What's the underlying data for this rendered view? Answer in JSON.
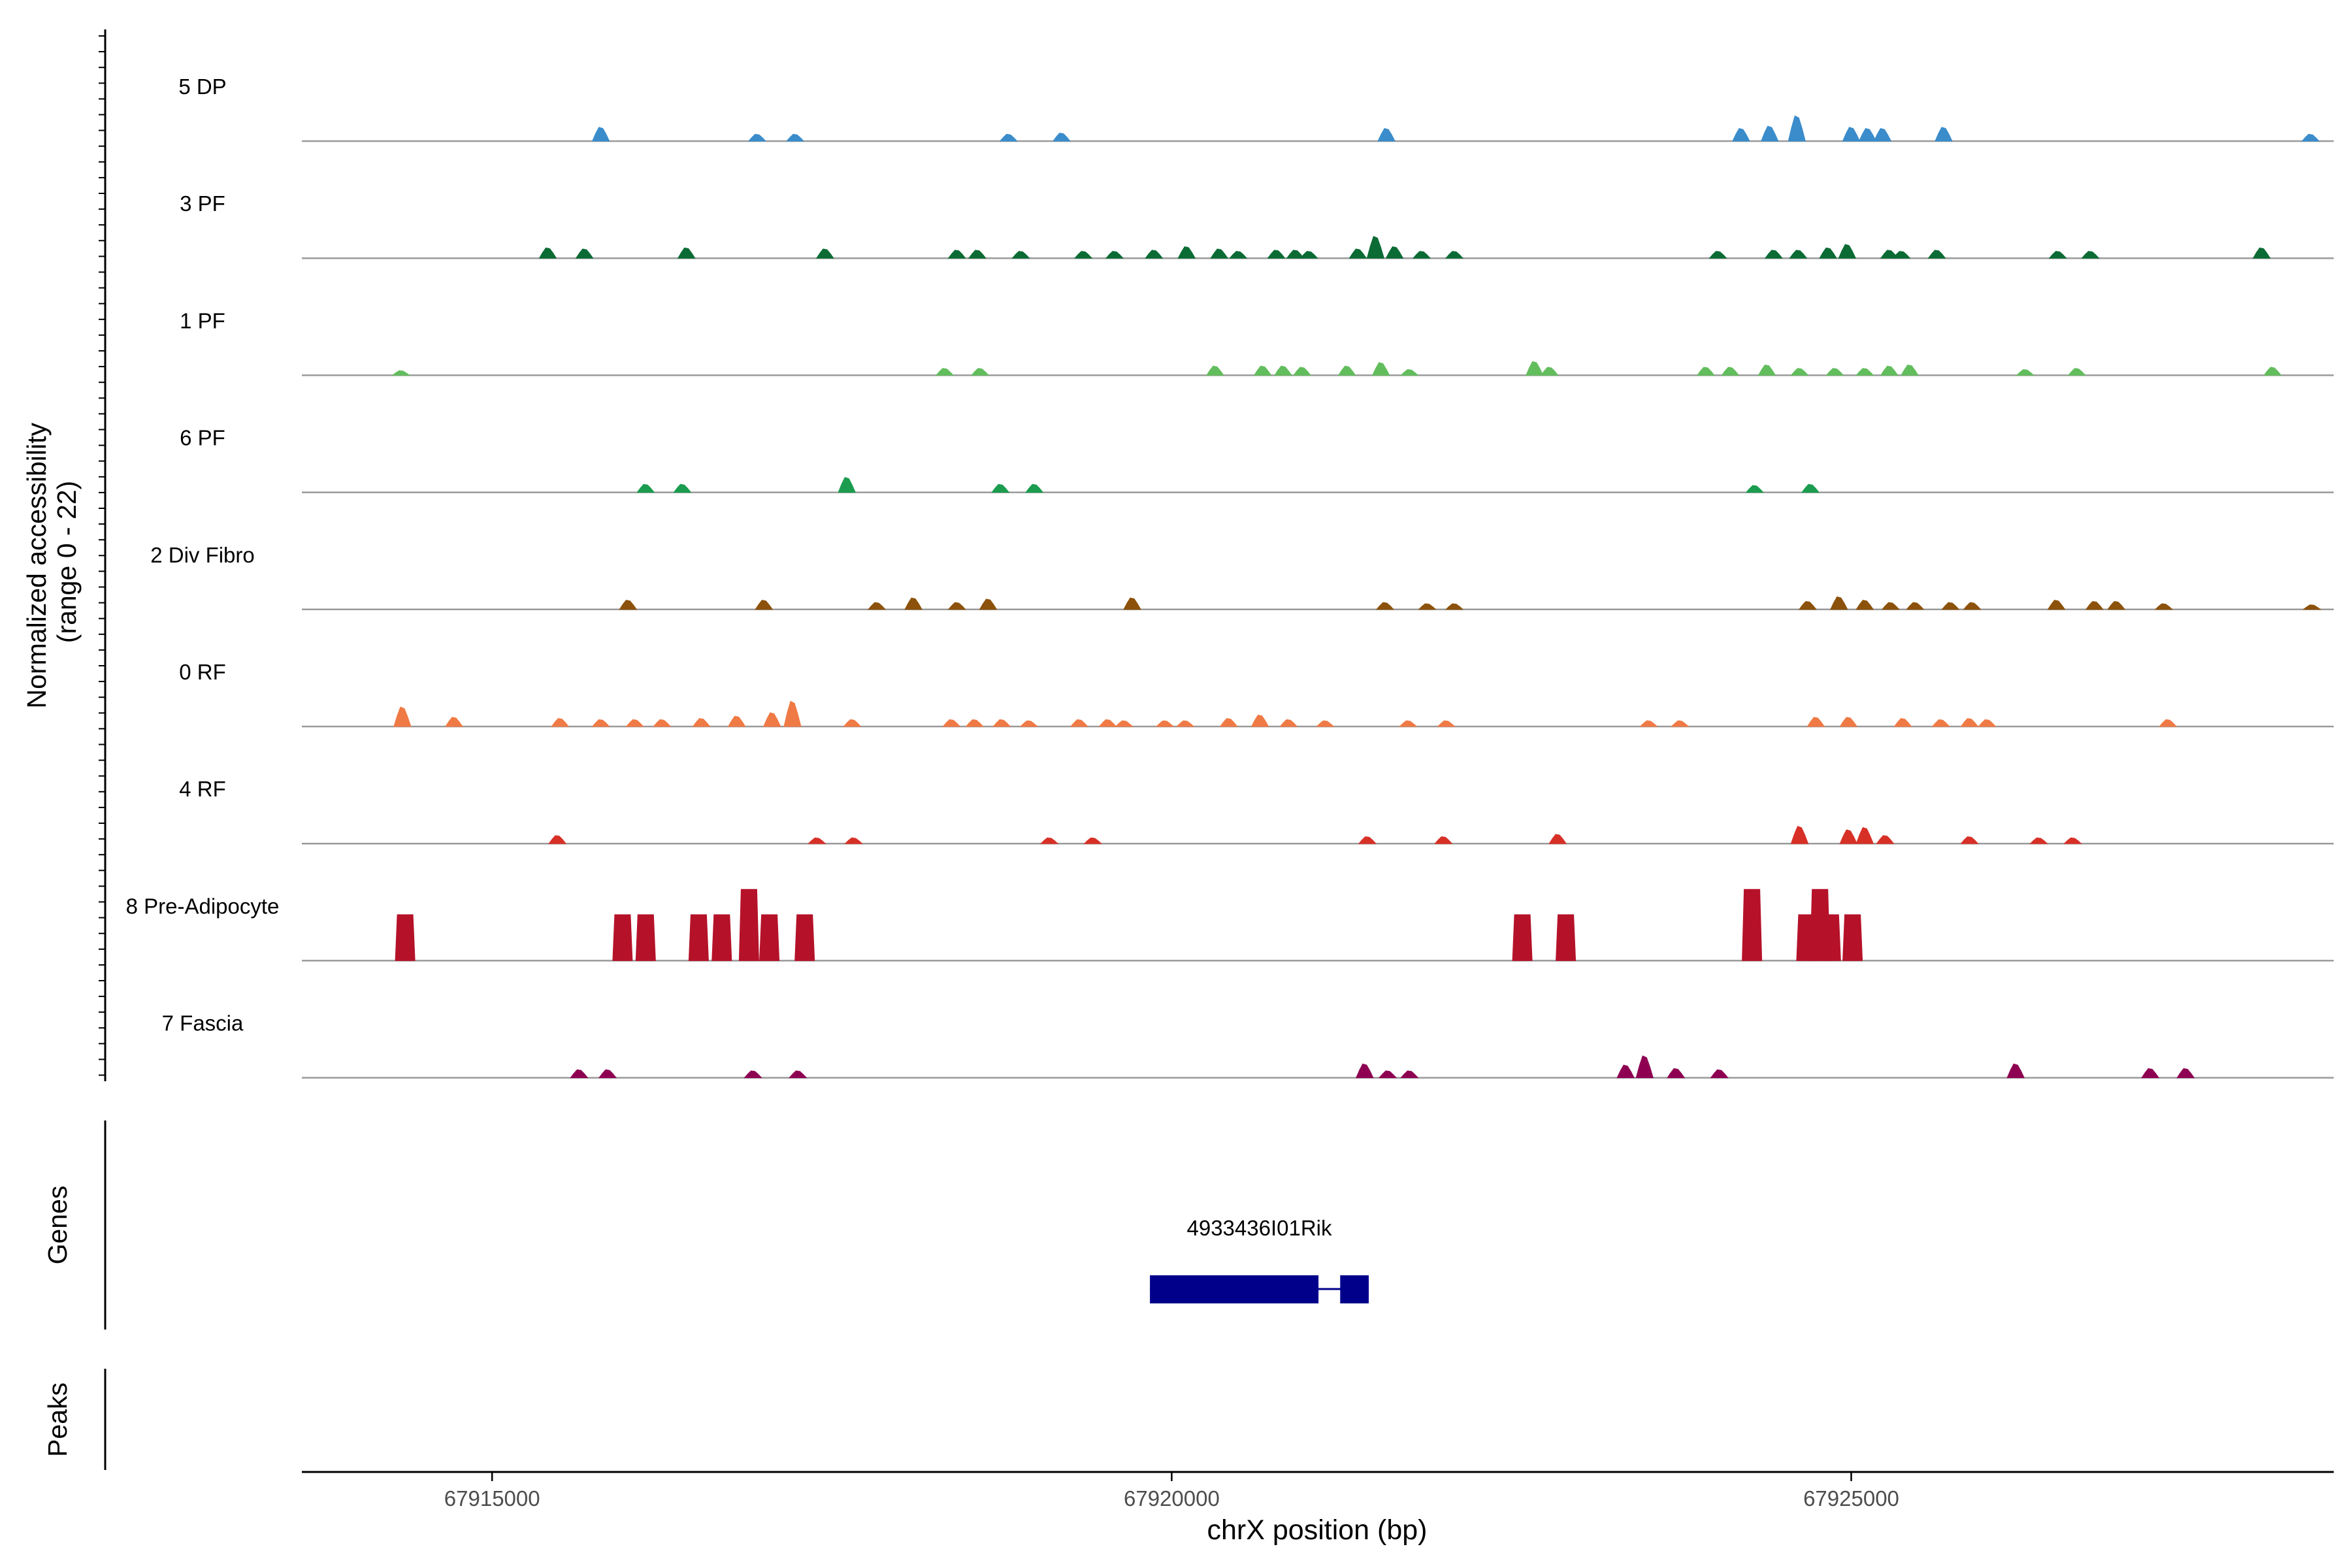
{
  "chart_data": {
    "type": "area",
    "title": "",
    "coverage_axis_label": [
      "Normalized accessibility",
      "(range 0 - 22)"
    ],
    "coverage_range": [
      0,
      22
    ],
    "xlabel": "chrX position (bp)",
    "x_range": [
      67913600,
      67928550
    ],
    "x_ticks": [
      {
        "value": 67915000,
        "label": "67915000"
      },
      {
        "value": 67920000,
        "label": "67920000"
      },
      {
        "value": 67925000,
        "label": "67925000"
      }
    ],
    "tracks": [
      {
        "name": "5 DP",
        "color": "#3a8ccb",
        "peaks": [
          [
            67915800,
            0.12
          ],
          [
            67916950,
            0.06
          ],
          [
            67917230,
            0.06
          ],
          [
            67918800,
            0.06
          ],
          [
            67919190,
            0.07
          ],
          [
            67921580,
            0.11
          ],
          [
            67924190,
            0.11
          ],
          [
            67924400,
            0.13
          ],
          [
            67924600,
            0.22
          ],
          [
            67925000,
            0.12
          ],
          [
            67925120,
            0.11
          ],
          [
            67925230,
            0.11
          ],
          [
            67925680,
            0.12
          ],
          [
            67928380,
            0.06
          ]
        ]
      },
      {
        "name": "3 PF",
        "color": "#0b6b34",
        "peaks": [
          [
            67915410,
            0.09
          ],
          [
            67915680,
            0.08
          ],
          [
            67916430,
            0.09
          ],
          [
            67917450,
            0.08
          ],
          [
            67918420,
            0.07
          ],
          [
            67918570,
            0.07
          ],
          [
            67918890,
            0.06
          ],
          [
            67919350,
            0.06
          ],
          [
            67919580,
            0.06
          ],
          [
            67919870,
            0.07
          ],
          [
            67920110,
            0.1
          ],
          [
            67920350,
            0.08
          ],
          [
            67920490,
            0.06
          ],
          [
            67920770,
            0.07
          ],
          [
            67920910,
            0.07
          ],
          [
            67921010,
            0.06
          ],
          [
            67921370,
            0.08
          ],
          [
            67921500,
            0.19
          ],
          [
            67921640,
            0.1
          ],
          [
            67921840,
            0.06
          ],
          [
            67922080,
            0.06
          ],
          [
            67924020,
            0.06
          ],
          [
            67924430,
            0.07
          ],
          [
            67924610,
            0.07
          ],
          [
            67924830,
            0.09
          ],
          [
            67924970,
            0.12
          ],
          [
            67925280,
            0.07
          ],
          [
            67925370,
            0.06
          ],
          [
            67925630,
            0.07
          ],
          [
            67926520,
            0.06
          ],
          [
            67926760,
            0.06
          ],
          [
            67928020,
            0.09
          ]
        ]
      },
      {
        "name": "1 PF",
        "color": "#62bd5c",
        "peaks": [
          [
            67914330,
            0.04
          ],
          [
            67918330,
            0.06
          ],
          [
            67918590,
            0.06
          ],
          [
            67920320,
            0.08
          ],
          [
            67920670,
            0.08
          ],
          [
            67920820,
            0.08
          ],
          [
            67920960,
            0.07
          ],
          [
            67921290,
            0.08
          ],
          [
            67921540,
            0.11
          ],
          [
            67921750,
            0.05
          ],
          [
            67922670,
            0.12
          ],
          [
            67922780,
            0.07
          ],
          [
            67923930,
            0.07
          ],
          [
            67924110,
            0.07
          ],
          [
            67924380,
            0.09
          ],
          [
            67924620,
            0.06
          ],
          [
            67924880,
            0.06
          ],
          [
            67925100,
            0.06
          ],
          [
            67925280,
            0.08
          ],
          [
            67925430,
            0.09
          ],
          [
            67926280,
            0.05
          ],
          [
            67926660,
            0.06
          ],
          [
            67928100,
            0.07
          ]
        ]
      },
      {
        "name": "6 PF",
        "color": "#1b9c4e",
        "peaks": [
          [
            67916130,
            0.07
          ],
          [
            67916400,
            0.07
          ],
          [
            67917610,
            0.13
          ],
          [
            67918740,
            0.07
          ],
          [
            67918990,
            0.07
          ],
          [
            67924290,
            0.06
          ],
          [
            67924700,
            0.07
          ]
        ]
      },
      {
        "name": "2 Div Fibro",
        "color": "#8c510a",
        "peaks": [
          [
            67916000,
            0.08
          ],
          [
            67917000,
            0.08
          ],
          [
            67917830,
            0.06
          ],
          [
            67918100,
            0.1
          ],
          [
            67918420,
            0.06
          ],
          [
            67918650,
            0.09
          ],
          [
            67919710,
            0.1
          ],
          [
            67921570,
            0.06
          ],
          [
            67921880,
            0.05
          ],
          [
            67922080,
            0.05
          ],
          [
            67924680,
            0.07
          ],
          [
            67924910,
            0.11
          ],
          [
            67925100,
            0.08
          ],
          [
            67925290,
            0.06
          ],
          [
            67925470,
            0.06
          ],
          [
            67925730,
            0.06
          ],
          [
            67925890,
            0.06
          ],
          [
            67926510,
            0.08
          ],
          [
            67926790,
            0.07
          ],
          [
            67926950,
            0.07
          ],
          [
            67927300,
            0.05
          ],
          [
            67928390,
            0.04
          ]
        ]
      },
      {
        "name": "0 RF",
        "color": "#f07a45",
        "peaks": [
          [
            67914340,
            0.17
          ],
          [
            67914720,
            0.08
          ],
          [
            67915500,
            0.07
          ],
          [
            67915800,
            0.06
          ],
          [
            67916050,
            0.06
          ],
          [
            67916250,
            0.06
          ],
          [
            67916540,
            0.07
          ],
          [
            67916800,
            0.09
          ],
          [
            67917060,
            0.12
          ],
          [
            67917210,
            0.22
          ],
          [
            67917650,
            0.06
          ],
          [
            67918380,
            0.06
          ],
          [
            67918550,
            0.06
          ],
          [
            67918750,
            0.06
          ],
          [
            67918950,
            0.05
          ],
          [
            67919320,
            0.06
          ],
          [
            67919530,
            0.06
          ],
          [
            67919650,
            0.05
          ],
          [
            67919950,
            0.05
          ],
          [
            67920100,
            0.05
          ],
          [
            67920420,
            0.07
          ],
          [
            67920650,
            0.1
          ],
          [
            67920860,
            0.06
          ],
          [
            67921130,
            0.05
          ],
          [
            67921740,
            0.05
          ],
          [
            67922020,
            0.05
          ],
          [
            67923510,
            0.05
          ],
          [
            67923740,
            0.05
          ],
          [
            67924740,
            0.08
          ],
          [
            67924980,
            0.08
          ],
          [
            67925380,
            0.07
          ],
          [
            67925660,
            0.06
          ],
          [
            67925870,
            0.07
          ],
          [
            67926000,
            0.06
          ],
          [
            67927330,
            0.06
          ]
        ]
      },
      {
        "name": "4 RF",
        "color": "#d73027",
        "peaks": [
          [
            67915480,
            0.07
          ],
          [
            67917390,
            0.05
          ],
          [
            67917660,
            0.05
          ],
          [
            67919100,
            0.05
          ],
          [
            67919420,
            0.05
          ],
          [
            67921440,
            0.06
          ],
          [
            67922000,
            0.06
          ],
          [
            67922840,
            0.08
          ],
          [
            67924620,
            0.15
          ],
          [
            67924980,
            0.12
          ],
          [
            67925100,
            0.14
          ],
          [
            67925250,
            0.07
          ],
          [
            67925870,
            0.06
          ],
          [
            67926380,
            0.05
          ],
          [
            67926630,
            0.05
          ]
        ]
      },
      {
        "name": "8 Pre-Adipocyte",
        "color": "#b5122a",
        "peaks": [
          [
            67914360,
            0.4
          ],
          [
            67915960,
            0.4
          ],
          [
            67916130,
            0.4
          ],
          [
            67916520,
            0.4
          ],
          [
            67916690,
            0.4
          ],
          [
            67916890,
            0.62
          ],
          [
            67917040,
            0.4
          ],
          [
            67917300,
            0.4
          ],
          [
            67922580,
            0.4
          ],
          [
            67922900,
            0.4
          ],
          [
            67924270,
            0.62
          ],
          [
            67924670,
            0.4
          ],
          [
            67924770,
            0.62
          ],
          [
            67924850,
            0.4
          ],
          [
            67925010,
            0.4
          ]
        ]
      },
      {
        "name": "7 Fascia",
        "color": "#8e0152",
        "peaks": [
          [
            67915640,
            0.07
          ],
          [
            67915850,
            0.07
          ],
          [
            67916920,
            0.06
          ],
          [
            67917250,
            0.06
          ],
          [
            67921420,
            0.12
          ],
          [
            67921590,
            0.06
          ],
          [
            67921750,
            0.06
          ],
          [
            67923340,
            0.11
          ],
          [
            67923480,
            0.19
          ],
          [
            67923710,
            0.08
          ],
          [
            67924030,
            0.07
          ],
          [
            67926210,
            0.12
          ],
          [
            67927200,
            0.08
          ],
          [
            67927460,
            0.08
          ]
        ]
      }
    ],
    "gene_track": {
      "label": "Genes",
      "genes": [
        {
          "name": "4933436I01Rik",
          "start": 67919840,
          "end": 67921450,
          "exons": [
            [
              67919840,
              67921080
            ],
            [
              67921240,
              67921450
            ]
          ],
          "color": "#00008b"
        }
      ]
    },
    "peak_track": {
      "label": "Peaks",
      "peaks": []
    }
  }
}
